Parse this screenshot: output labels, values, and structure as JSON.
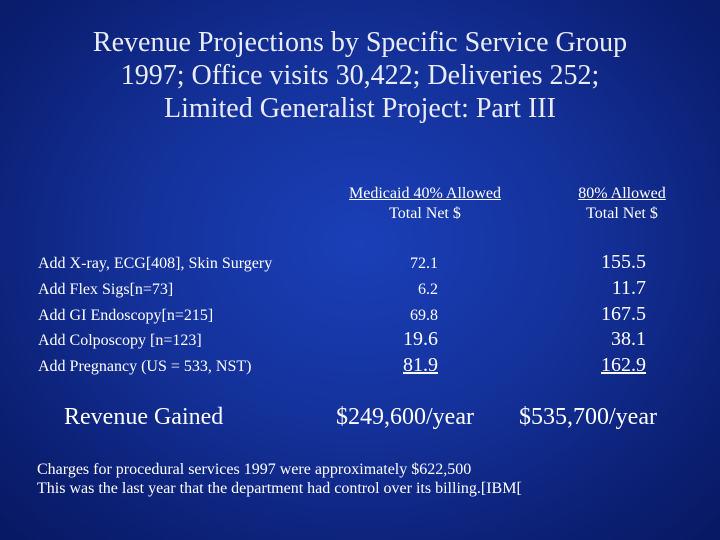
{
  "slide": {
    "title_lines": [
      "Revenue Projections by Specific Service Group",
      "1997; Office visits 30,422; Deliveries 252;",
      "Limited Generalist Project: Part III"
    ]
  },
  "table": {
    "col1_header": [
      "Medicaid 40% Allowed",
      "Total Net $"
    ],
    "col2_header": [
      "80% Allowed",
      "Total Net $"
    ],
    "rows": [
      {
        "label": "Add X-ray, ECG[408], Skin Surgery",
        "col1": "72.1",
        "col2": "155.5"
      },
      {
        "label": "Add Flex Sigs[n=73]",
        "col1": "6.2",
        "col2": "11.7"
      },
      {
        "label": "Add GI Endoscopy[n=215]",
        "col1": "69.8",
        "col2": "167.5"
      },
      {
        "label": "Add Colposcopy [n=123]",
        "col1": "19.6",
        "col2": "38.1"
      },
      {
        "label": "Add Pregnancy (US = 533, NST)",
        "col1": "81.9",
        "col2": "162.9"
      }
    ],
    "revenue_label": "Revenue Gained",
    "revenue_col1": "$249,600/year",
    "revenue_col2": "$535,700/year"
  },
  "notes": [
    "Charges for procedural services 1997 were approximately $622,500",
    "This was the last year that the department had control over its billing.[IBM["
  ]
}
